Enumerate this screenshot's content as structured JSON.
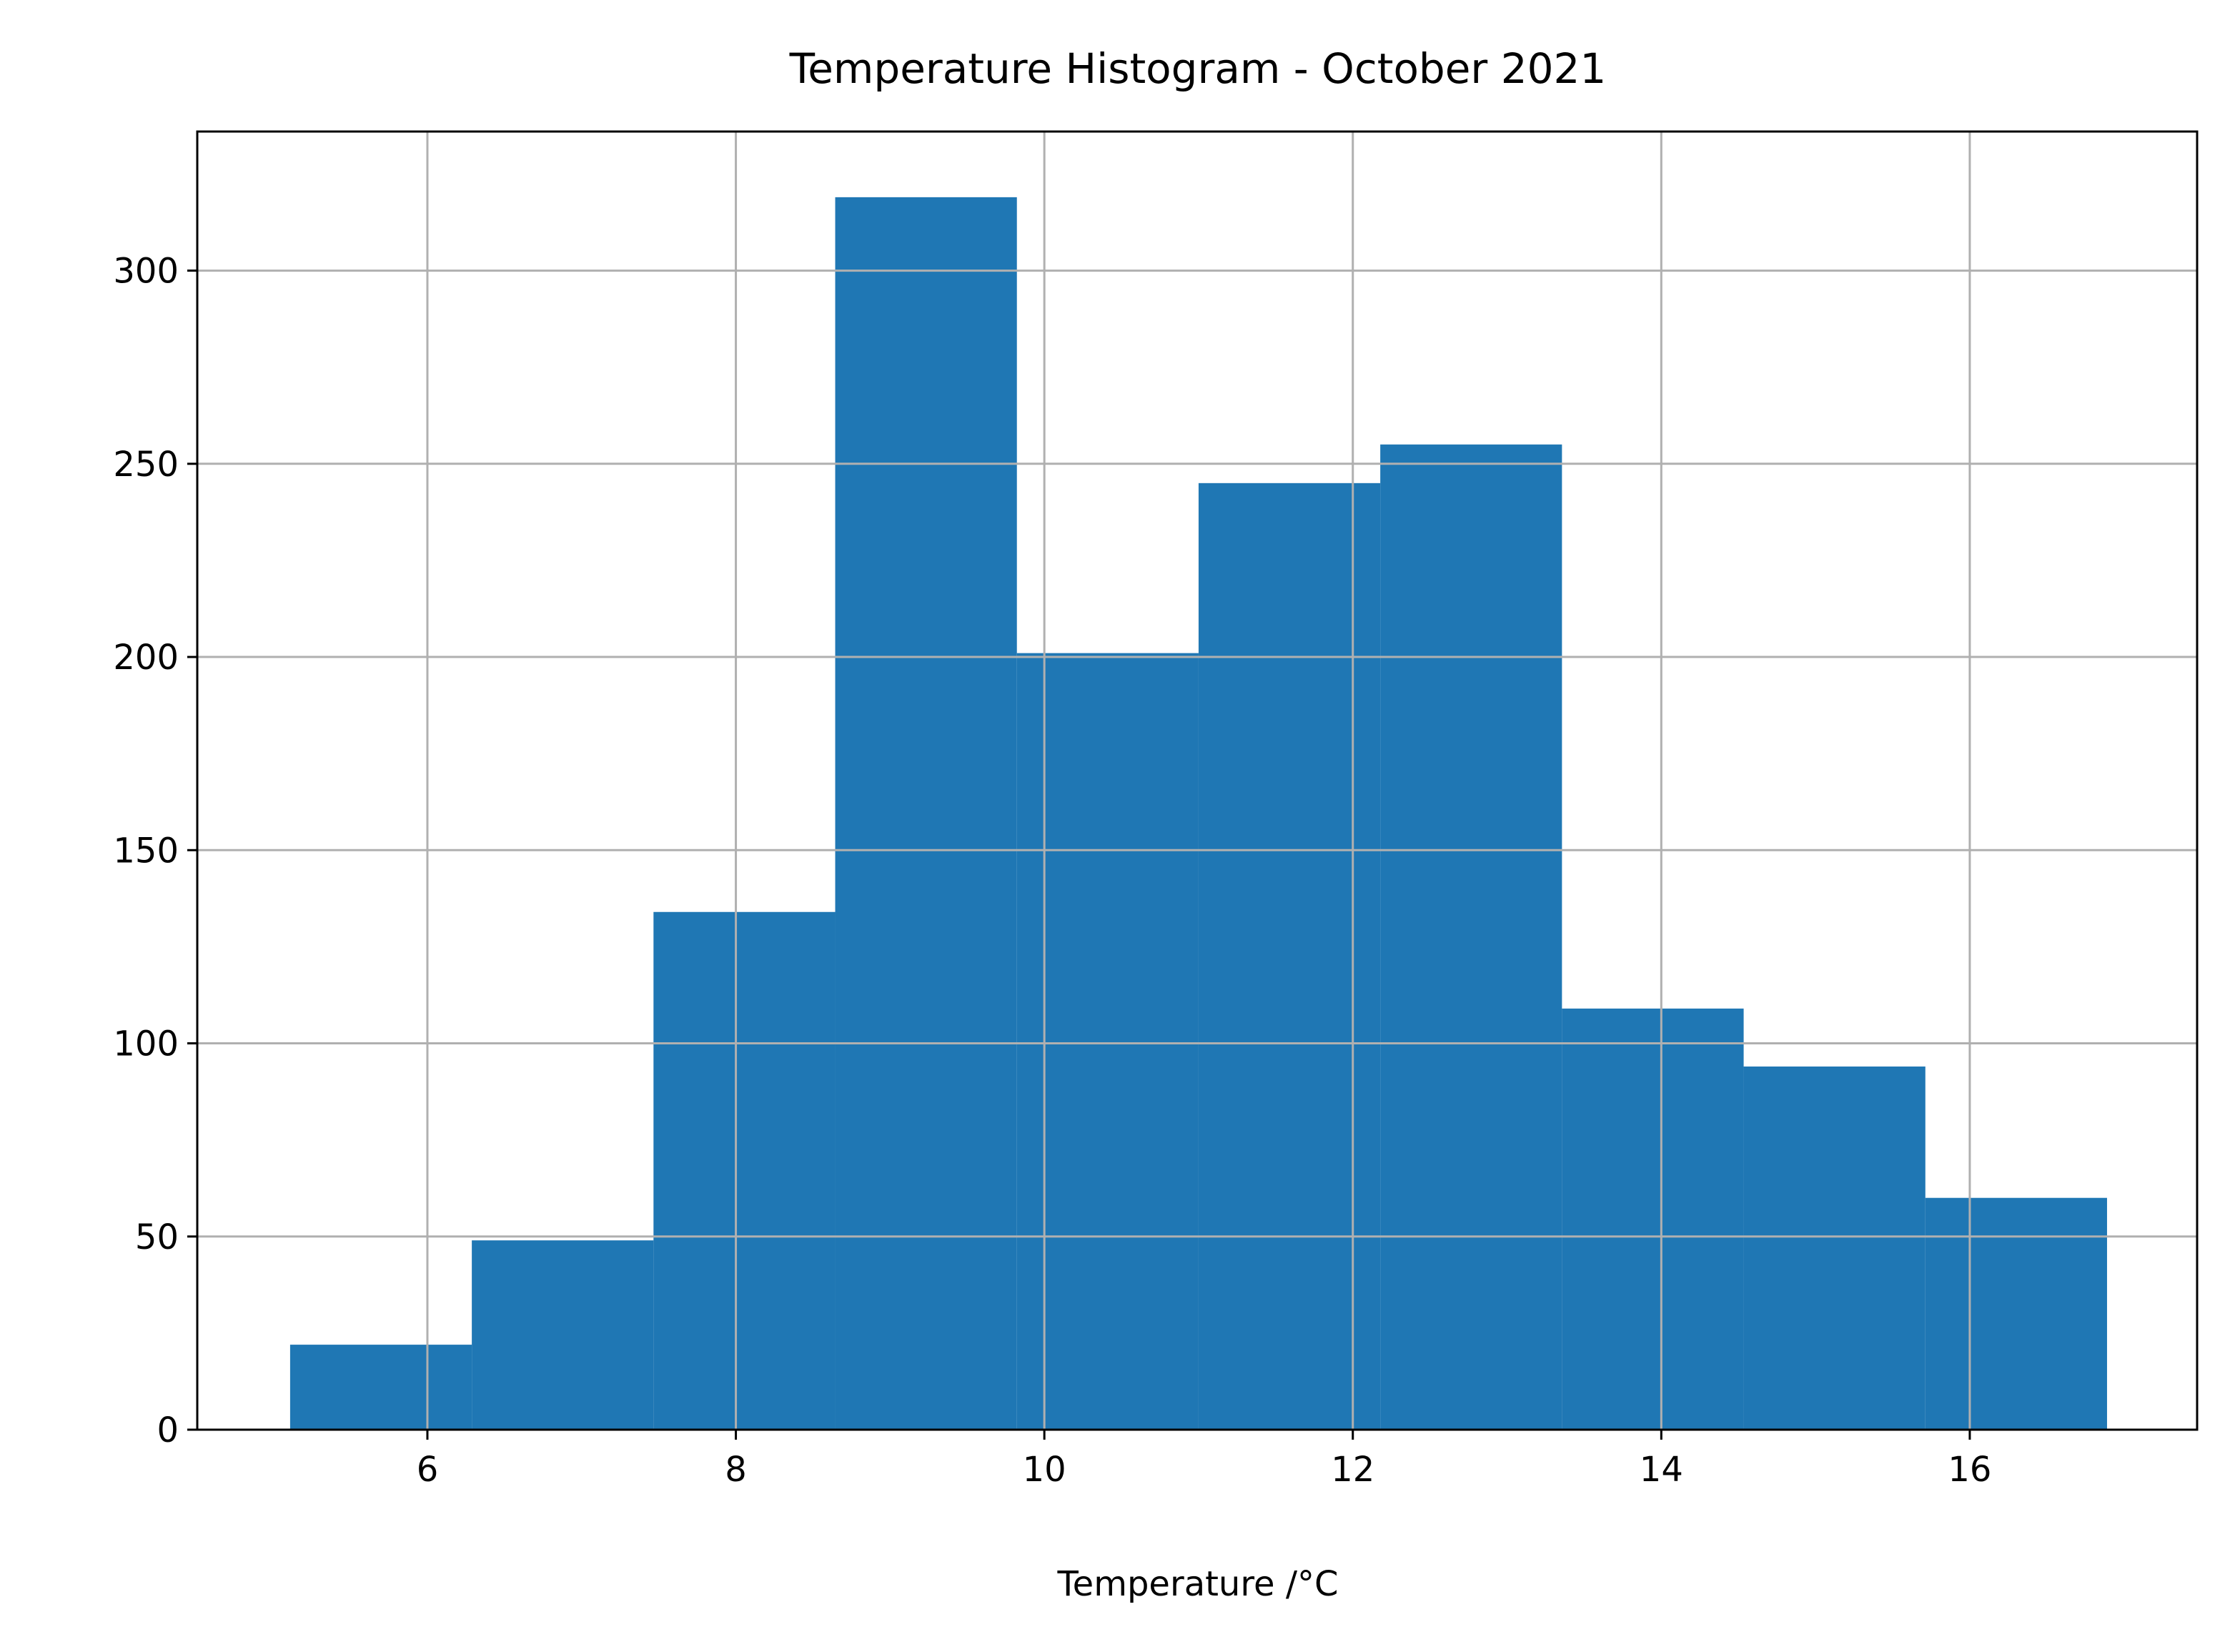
{
  "chart_data": {
    "type": "histogram",
    "title": "Temperature Histogram - October 2021",
    "xlabel": "Temperature /°C",
    "bins": [
      5.11,
      6.288,
      7.466,
      8.644,
      9.822,
      11.0,
      12.178,
      13.356,
      14.534,
      15.712,
      16.89
    ],
    "values": [
      22,
      49,
      134,
      319,
      201,
      245,
      255,
      109,
      94,
      60
    ],
    "color": "#1f77b4",
    "xlim": [
      4.508,
      17.474
    ],
    "xticks": [
      6,
      8,
      10,
      12,
      14,
      16
    ],
    "ylim": [
      0,
      336
    ],
    "yticks": [
      0,
      50,
      100,
      150,
      200,
      250,
      300
    ],
    "grid": true
  }
}
